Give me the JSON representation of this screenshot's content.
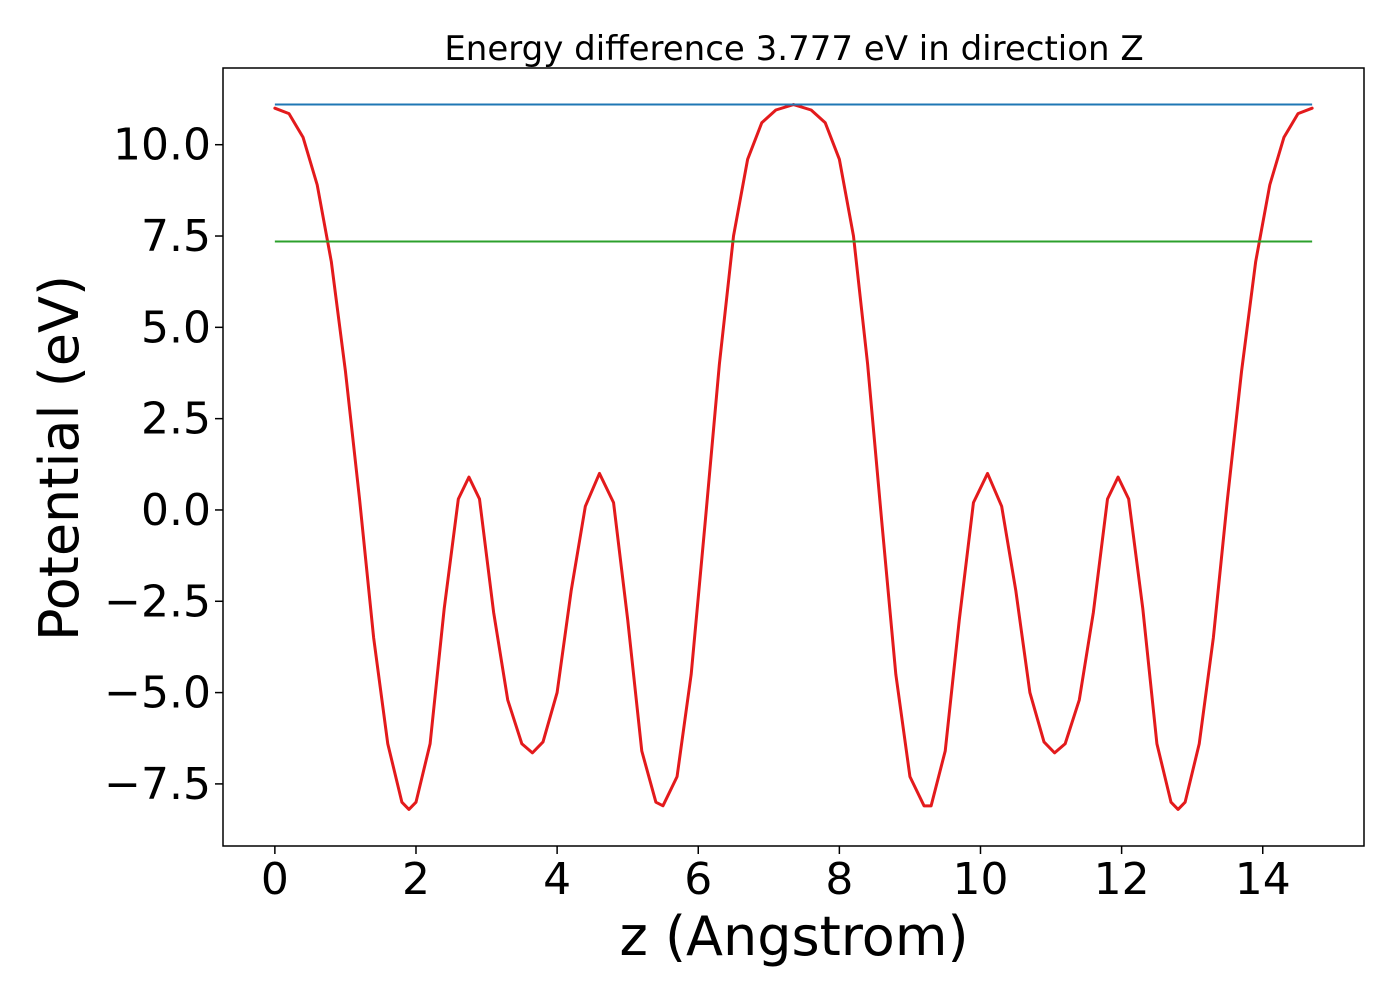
{
  "chart_data": {
    "type": "line",
    "title": "Energy difference 3.777 eV in direction Z",
    "xlabel": "z (Angstrom)",
    "ylabel": "Potential (eV)",
    "xlim": [
      -0.735,
      15.435
    ],
    "ylim": [
      -9.2,
      12.1
    ],
    "x_ticks": [
      0,
      2,
      4,
      6,
      8,
      10,
      12,
      14
    ],
    "x_tick_labels": [
      "0",
      "2",
      "4",
      "6",
      "8",
      "10",
      "12",
      "14"
    ],
    "y_ticks": [
      10.0,
      7.5,
      5.0,
      2.5,
      0.0,
      -2.5,
      -5.0,
      -7.5
    ],
    "y_tick_labels": [
      "10.0",
      "7.5",
      "5.0",
      "2.5",
      "0.0",
      "−2.5",
      "−5.0",
      "−7.5"
    ],
    "grid": false,
    "legend": "none",
    "series": [
      {
        "color": "#e31a1c",
        "style": "line",
        "points": [
          [
            0.0,
            11.0
          ],
          [
            0.2,
            10.85
          ],
          [
            0.4,
            10.2
          ],
          [
            0.6,
            8.9
          ],
          [
            0.8,
            6.8
          ],
          [
            1.0,
            3.8
          ],
          [
            1.2,
            0.3
          ],
          [
            1.4,
            -3.5
          ],
          [
            1.6,
            -6.4
          ],
          [
            1.8,
            -8.0
          ],
          [
            1.9,
            -8.2
          ],
          [
            2.0,
            -8.0
          ],
          [
            2.2,
            -6.4
          ],
          [
            2.4,
            -2.7
          ],
          [
            2.6,
            0.3
          ],
          [
            2.75,
            0.9
          ],
          [
            2.9,
            0.3
          ],
          [
            3.1,
            -2.8
          ],
          [
            3.3,
            -5.2
          ],
          [
            3.5,
            -6.4
          ],
          [
            3.65,
            -6.65
          ],
          [
            3.8,
            -6.35
          ],
          [
            4.0,
            -5.0
          ],
          [
            4.2,
            -2.2
          ],
          [
            4.4,
            0.1
          ],
          [
            4.6,
            1.0
          ],
          [
            4.8,
            0.2
          ],
          [
            5.0,
            -3.0
          ],
          [
            5.2,
            -6.6
          ],
          [
            5.4,
            -8.0
          ],
          [
            5.5,
            -8.1
          ],
          [
            5.7,
            -7.3
          ],
          [
            5.9,
            -4.5
          ],
          [
            6.1,
            -0.3
          ],
          [
            6.3,
            4.0
          ],
          [
            6.5,
            7.5
          ],
          [
            6.7,
            9.6
          ],
          [
            6.9,
            10.6
          ],
          [
            7.1,
            10.95
          ],
          [
            7.35,
            11.1
          ],
          [
            7.6,
            10.95
          ],
          [
            7.8,
            10.6
          ],
          [
            8.0,
            9.6
          ],
          [
            8.2,
            7.5
          ],
          [
            8.4,
            4.0
          ],
          [
            8.6,
            -0.3
          ],
          [
            8.8,
            -4.5
          ],
          [
            9.0,
            -7.3
          ],
          [
            9.2,
            -8.1
          ],
          [
            9.3,
            -8.1
          ],
          [
            9.5,
            -6.6
          ],
          [
            9.7,
            -3.0
          ],
          [
            9.9,
            0.2
          ],
          [
            10.1,
            1.0
          ],
          [
            10.3,
            0.1
          ],
          [
            10.5,
            -2.2
          ],
          [
            10.7,
            -5.0
          ],
          [
            10.9,
            -6.35
          ],
          [
            11.05,
            -6.65
          ],
          [
            11.2,
            -6.4
          ],
          [
            11.4,
            -5.2
          ],
          [
            11.6,
            -2.8
          ],
          [
            11.8,
            0.3
          ],
          [
            11.95,
            0.9
          ],
          [
            12.1,
            0.3
          ],
          [
            12.3,
            -2.7
          ],
          [
            12.5,
            -6.4
          ],
          [
            12.7,
            -8.0
          ],
          [
            12.8,
            -8.2
          ],
          [
            12.9,
            -8.0
          ],
          [
            13.1,
            -6.4
          ],
          [
            13.3,
            -3.5
          ],
          [
            13.5,
            0.3
          ],
          [
            13.7,
            3.8
          ],
          [
            13.9,
            6.8
          ],
          [
            14.1,
            8.9
          ],
          [
            14.3,
            10.2
          ],
          [
            14.5,
            10.85
          ],
          [
            14.7,
            11.0
          ]
        ]
      },
      {
        "color": "#1f77b4",
        "style": "hline",
        "x": [
          0.0,
          14.7
        ],
        "y": 11.1
      },
      {
        "color": "#2ca02c",
        "style": "hline",
        "x": [
          0.0,
          14.7
        ],
        "y": 7.35
      }
    ]
  }
}
